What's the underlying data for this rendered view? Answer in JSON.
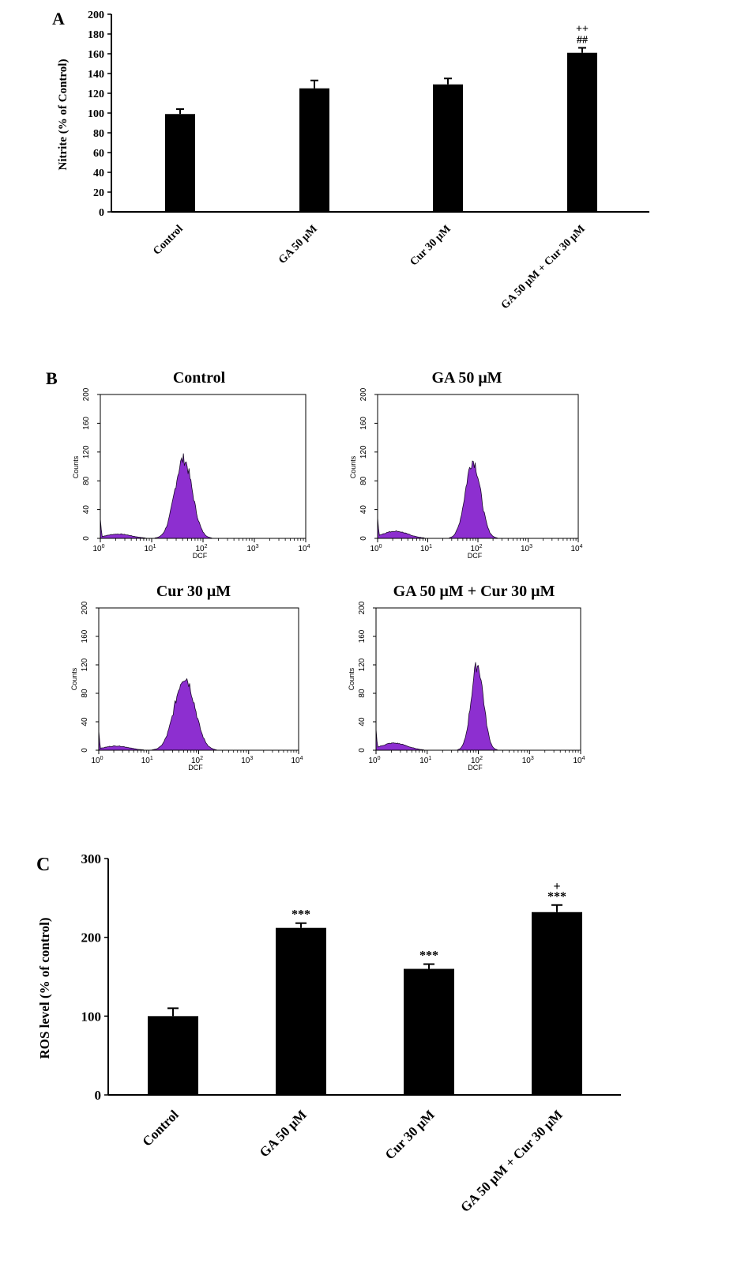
{
  "chart_data": [
    {
      "panel": "A",
      "type": "bar",
      "categories": [
        "Control",
        "GA 50 μM",
        "Cur 30 μM",
        "GA 50 μM + Cur 30 μM"
      ],
      "values": [
        99,
        125,
        129,
        161
      ],
      "errors": [
        5,
        8,
        6,
        5
      ],
      "annotations": [
        "",
        "",
        "",
        "++\n##"
      ],
      "ylabel": "Nitrite  (% of Control)",
      "xlabel": "",
      "ylim": [
        0,
        200
      ],
      "yticks": [
        0,
        20,
        40,
        60,
        80,
        100,
        120,
        140,
        160,
        180,
        200
      ],
      "bar_color": "#000000"
    },
    {
      "panel": "B",
      "type": "area",
      "subplots": [
        {
          "title": "Control",
          "peak_log": 1.62,
          "peak_count": 110,
          "sigma": 0.17,
          "shoulder_count": 6
        },
        {
          "title": "GA 50 μM",
          "peak_log": 1.9,
          "peak_count": 108,
          "sigma": 0.15,
          "shoulder_count": 10
        },
        {
          "title": "Cur 30 μM",
          "peak_log": 1.72,
          "peak_count": 103,
          "sigma": 0.2,
          "shoulder_count": 6
        },
        {
          "title": "GA 50 μM + Cur 30 μM",
          "peak_log": 1.98,
          "peak_count": 120,
          "sigma": 0.12,
          "shoulder_count": 10
        }
      ],
      "xlabel": "DCF",
      "ylabel": "Counts",
      "xscale": "log",
      "xlim": [
        1,
        10000
      ],
      "xtick_bases": [
        "10",
        "10",
        "10",
        "10",
        "10"
      ],
      "xtick_exps": [
        "0",
        "1",
        "2",
        "3",
        "4"
      ],
      "ylim": [
        0,
        200
      ],
      "yticks": [
        0,
        40,
        80,
        120,
        160,
        200
      ],
      "fill_color": "#8d2fd0",
      "edge_color": "#1a0a2a"
    },
    {
      "panel": "C",
      "type": "bar",
      "categories": [
        "Control",
        "GA 50 μM",
        "Cur 30 μM",
        "GA 50 μM + Cur 30 μM"
      ],
      "values": [
        100,
        212,
        160,
        232
      ],
      "errors": [
        10,
        6,
        6,
        9
      ],
      "annotations": [
        "",
        "***",
        "***",
        "+\n***"
      ],
      "ylabel": "ROS level (%  of control)",
      "xlabel": "",
      "ylim": [
        0,
        300
      ],
      "yticks": [
        0,
        100,
        200,
        300
      ],
      "bar_color": "#000000"
    }
  ]
}
